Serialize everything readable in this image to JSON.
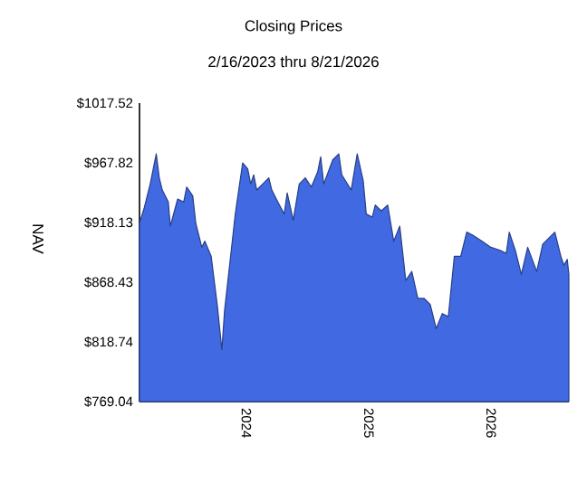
{
  "chart_data": {
    "type": "area",
    "title": "Closing Prices",
    "subtitle": "2/16/2023 thru 8/21/2026",
    "ylabel": "NAV",
    "x": [
      "2023-02-16",
      "2023-03-02",
      "2023-03-20",
      "2023-04-07",
      "2023-04-16",
      "2023-04-25",
      "2023-05-13",
      "2023-05-19",
      "2023-06-10",
      "2023-06-28",
      "2023-07-07",
      "2023-07-25",
      "2023-08-03",
      "2023-08-21",
      "2023-08-30",
      "2023-09-18",
      "2023-10-06",
      "2023-10-20",
      "2023-10-28",
      "2023-11-17",
      "2023-11-29",
      "2023-12-21",
      "2024-01-05",
      "2024-01-14",
      "2024-01-23",
      "2024-02-01",
      "2024-02-19",
      "2024-03-08",
      "2024-03-17",
      "2024-04-04",
      "2024-04-23",
      "2024-05-02",
      "2024-05-20",
      "2024-06-07",
      "2024-06-25",
      "2024-07-13",
      "2024-08-01",
      "2024-08-10",
      "2024-08-19",
      "2024-09-15",
      "2024-10-03",
      "2024-10-12",
      "2024-11-09",
      "2024-11-27",
      "2024-12-15",
      "2024-12-24",
      "2025-01-11",
      "2025-01-20",
      "2025-02-07",
      "2025-02-26",
      "2025-03-16",
      "2025-04-03",
      "2025-04-21",
      "2025-05-09",
      "2025-05-27",
      "2025-06-15",
      "2025-07-03",
      "2025-07-21",
      "2025-08-08",
      "2025-08-26",
      "2025-09-13",
      "2025-10-02",
      "2025-10-20",
      "2025-11-07",
      "2025-12-04",
      "2025-12-31",
      "2026-01-28",
      "2026-02-15",
      "2026-02-24",
      "2026-03-14",
      "2026-04-01",
      "2026-04-20",
      "2026-05-17",
      "2026-06-04",
      "2026-07-10",
      "2026-07-28",
      "2026-08-06",
      "2026-08-16",
      "2026-08-21"
    ],
    "series": [
      {
        "color": "#4169e1",
        "values": [
          917.6,
          930.2,
          950.2,
          975.3,
          955.3,
          945.2,
          935.2,
          915.1,
          937.7,
          935.2,
          947.7,
          940.2,
          917.6,
          897.5,
          902.6,
          890.0,
          849.8,
          812.2,
          844.8,
          895.0,
          925.2,
          967.8,
          962.8,
          950.2,
          957.8,
          945.2,
          950.2,
          955.3,
          945.2,
          935.2,
          925.2,
          942.7,
          920.1,
          950.2,
          955.3,
          947.7,
          960.3,
          972.8,
          950.2,
          970.3,
          975.3,
          957.8,
          945.2,
          975.3,
          952.8,
          925.2,
          922.6,
          932.7,
          927.7,
          932.7,
          902.6,
          915.1,
          869.9,
          877.4,
          854.9,
          854.9,
          849.8,
          829.8,
          842.3,
          839.8,
          890.0,
          890.0,
          910.1,
          907.6,
          902.6,
          897.5,
          895.0,
          892.5,
          910.1,
          895.0,
          874.9,
          897.5,
          877.4,
          900.1,
          910.1,
          890.0,
          882.5,
          887.5,
          874.9
        ]
      }
    ],
    "xlim": [
      "2023-02-16",
      "2026-08-21"
    ],
    "xticks": [
      {
        "value": "2024-01-01",
        "label": "2024"
      },
      {
        "value": "2025-01-01",
        "label": "2025"
      },
      {
        "value": "2026-01-01",
        "label": "2026"
      }
    ],
    "ylim": [
      769.04,
      1017.52
    ],
    "yticks": [
      {
        "value": 769.04,
        "label": "$769.04"
      },
      {
        "value": 818.74,
        "label": "$818.74"
      },
      {
        "value": 868.43,
        "label": "$868.43"
      },
      {
        "value": 918.13,
        "label": "$918.13"
      },
      {
        "value": 967.82,
        "label": "$967.82"
      },
      {
        "value": 1017.52,
        "label": "$1017.52"
      }
    ]
  }
}
